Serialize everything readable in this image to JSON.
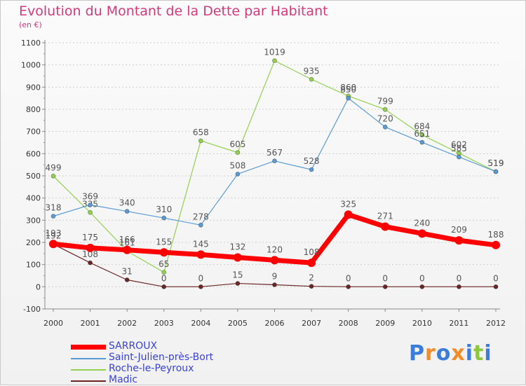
{
  "chart_data": {
    "type": "line",
    "title": "Evolution du Montant de la Dette par Habitant",
    "subtitle": "(en €)",
    "x": [
      "2000",
      "2001",
      "2002",
      "2003",
      "2004",
      "2005",
      "2006",
      "2007",
      "2008",
      "2009",
      "2010",
      "2011",
      "2012"
    ],
    "ylim": [
      -100,
      1100
    ],
    "yticks": [
      "-100",
      "0",
      "100",
      "200",
      "300",
      "400",
      "500",
      "600",
      "700",
      "800",
      "900",
      "1000",
      "1100"
    ],
    "grid": true,
    "legend_position": "bottom-left",
    "series": [
      {
        "name": "SARROUX",
        "color": "#ff0000",
        "values": [
          193,
          175,
          166,
          155,
          145,
          132,
          120,
          108,
          325,
          271,
          240,
          209,
          188
        ]
      },
      {
        "name": "Saint-Julien-près-Bort",
        "color": "#5b9bd5",
        "values": [
          318,
          369,
          340,
          310,
          278,
          508,
          567,
          528,
          850,
          720,
          651,
          585,
          519
        ]
      },
      {
        "name": "Roche-le-Peyroux",
        "color": "#92d050",
        "values": [
          499,
          335,
          161,
          65,
          658,
          605,
          1019,
          935,
          860,
          799,
          684,
          602,
          519
        ]
      },
      {
        "name": "Madic",
        "color": "#6b2626",
        "values": [
          192,
          108,
          31,
          0,
          0,
          15,
          9,
          2,
          0,
          0,
          0,
          0,
          0
        ]
      }
    ]
  },
  "brand": {
    "letters": [
      "P",
      "r",
      "o",
      "x",
      "i",
      "t",
      "i"
    ],
    "colors": [
      "#3b7dd8",
      "#f28c28",
      "#3b7dd8",
      "#f28c28",
      "#3b7dd8",
      "#8dc63f",
      "#3b7dd8"
    ]
  }
}
